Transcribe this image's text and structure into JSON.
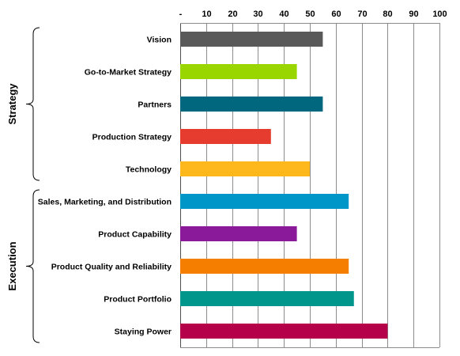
{
  "chart_data": {
    "type": "bar",
    "orientation": "horizontal",
    "x_axis_position": "top",
    "xlim": [
      0,
      100
    ],
    "x_ticks": [
      {
        "value": 0,
        "label": "-"
      },
      {
        "value": 10,
        "label": "10"
      },
      {
        "value": 20,
        "label": "20"
      },
      {
        "value": 30,
        "label": "30"
      },
      {
        "value": 40,
        "label": "40"
      },
      {
        "value": 50,
        "label": "50"
      },
      {
        "value": 60,
        "label": "60"
      },
      {
        "value": 70,
        "label": "70"
      },
      {
        "value": 80,
        "label": "80"
      },
      {
        "value": 90,
        "label": "90"
      },
      {
        "value": 100,
        "label": "100"
      }
    ],
    "grid": true,
    "categories": [
      "Vision",
      "Go-to-Market Strategy",
      "Partners",
      "Production Strategy",
      "Technology",
      "Sales, Marketing, and Distribution",
      "Product Capability",
      "Product Quality and Reliability",
      "Product Portfolio",
      "Staying Power"
    ],
    "values": [
      55,
      45,
      55,
      35,
      50,
      65,
      45,
      65,
      67,
      80
    ],
    "colors": [
      "#595959",
      "#99d600",
      "#00677f",
      "#e63c2f",
      "#ffb81c",
      "#0096c8",
      "#8b1a9a",
      "#f57e00",
      "#00968c",
      "#b5004a"
    ],
    "groups": [
      {
        "label": "Strategy",
        "start": 0,
        "end": 4
      },
      {
        "label": "Execution",
        "start": 5,
        "end": 9
      }
    ]
  }
}
